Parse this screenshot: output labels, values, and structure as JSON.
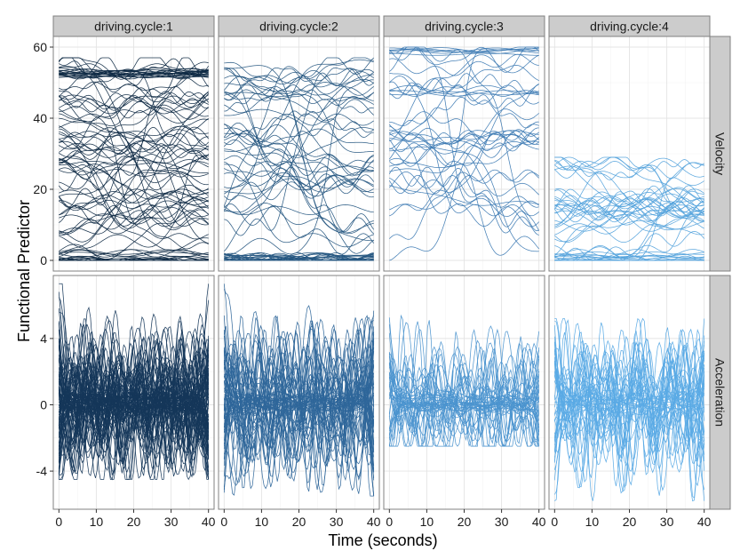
{
  "chart_data": {
    "type": "line",
    "title": "",
    "xlabel": "Time (seconds)",
    "ylabel": "Functional Predictor",
    "facet_columns": [
      "driving.cycle:1",
      "driving.cycle:2",
      "driving.cycle:3",
      "driving.cycle:4"
    ],
    "facet_rows": [
      "Velocity",
      "Acceleration"
    ],
    "x": {
      "range": [
        -1.5,
        41.5
      ],
      "ticks": [
        0,
        10,
        20,
        30,
        40
      ],
      "tick_labels": [
        "0",
        "10",
        "20",
        "30",
        "40"
      ]
    },
    "rows": [
      {
        "name": "Velocity",
        "ylim": [
          -3,
          63
        ],
        "ticks": [
          0,
          20,
          40,
          60
        ],
        "tick_labels": [
          "0",
          "20",
          "40",
          "60"
        ]
      },
      {
        "name": "Acceleration",
        "ylim": [
          -6.3,
          7.8
        ],
        "ticks": [
          -4,
          0,
          4
        ],
        "tick_labels": [
          "-4",
          "0",
          "4"
        ]
      }
    ],
    "series": [
      {
        "facet": "driving.cycle:1",
        "row": "Velocity",
        "color": "#0f2a45",
        "curves": 95,
        "value_range": [
          0,
          57
        ],
        "flat_levels": [
          52,
          53,
          2,
          0
        ]
      },
      {
        "facet": "driving.cycle:2",
        "row": "Velocity",
        "color": "#24557f",
        "curves": 65,
        "value_range": [
          0,
          57
        ],
        "flat_levels": [
          0,
          1
        ]
      },
      {
        "facet": "driving.cycle:3",
        "row": "Velocity",
        "color": "#3d7ab3",
        "curves": 45,
        "value_range": [
          0,
          60
        ],
        "flat_levels": [
          59,
          58,
          48,
          47
        ]
      },
      {
        "facet": "driving.cycle:4",
        "row": "Velocity",
        "color": "#55a3dc",
        "curves": 45,
        "value_range": [
          0,
          29
        ],
        "flat_levels": [
          0,
          1,
          2
        ]
      },
      {
        "facet": "driving.cycle:1",
        "row": "Acceleration",
        "color": "#15375a",
        "curves": 95,
        "value_range": [
          -4.5,
          7.3
        ]
      },
      {
        "facet": "driving.cycle:2",
        "row": "Acceleration",
        "color": "#2e669a",
        "curves": 65,
        "value_range": [
          -5.5,
          7.3
        ]
      },
      {
        "facet": "driving.cycle:3",
        "row": "Acceleration",
        "color": "#4b94cf",
        "curves": 45,
        "value_range": [
          -2.5,
          6
        ]
      },
      {
        "facet": "driving.cycle:4",
        "row": "Acceleration",
        "color": "#5aaae5",
        "curves": 45,
        "value_range": [
          -5.8,
          5.2
        ]
      }
    ]
  }
}
